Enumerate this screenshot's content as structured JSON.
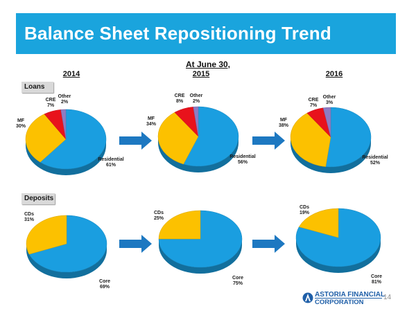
{
  "title": "Balance Sheet Repositioning Trend",
  "subtitle": "At June 30,",
  "years": [
    "2014",
    "2015",
    "2016"
  ],
  "sections": {
    "loans": "Loans",
    "deposits": "Deposits"
  },
  "colors": {
    "title_bar": "#1aa4dd",
    "blue": "#1a9ee0",
    "yellow": "#fcc100",
    "red": "#e8121c",
    "purple": "#8e7cc3",
    "arrow": "#1d78c1"
  },
  "chart_data": [
    {
      "type": "pie",
      "group": "Loans",
      "year": "2014",
      "categories": [
        "Residential",
        "MF",
        "CRE",
        "Other"
      ],
      "values": [
        61,
        30,
        7,
        2
      ],
      "labels": [
        "Residential 61%",
        "MF 30%",
        "CRE 7%",
        "Other 2%"
      ]
    },
    {
      "type": "pie",
      "group": "Loans",
      "year": "2015",
      "categories": [
        "Residential",
        "MF",
        "CRE",
        "Other"
      ],
      "values": [
        56,
        34,
        8,
        2
      ],
      "labels": [
        "Residential 56%",
        "MF 34%",
        "CRE 8%",
        "Other 2%"
      ]
    },
    {
      "type": "pie",
      "group": "Loans",
      "year": "2016",
      "categories": [
        "Residential",
        "MF",
        "CRE",
        "Other"
      ],
      "values": [
        52,
        38,
        7,
        3
      ],
      "labels": [
        "Residential 52%",
        "MF 38%",
        "CRE 7%",
        "Other 3%"
      ]
    },
    {
      "type": "pie",
      "group": "Deposits",
      "year": "2014",
      "categories": [
        "Core",
        "CDs"
      ],
      "values": [
        69,
        31
      ],
      "labels": [
        "Core 69%",
        "CDs 31%"
      ]
    },
    {
      "type": "pie",
      "group": "Deposits",
      "year": "2015",
      "categories": [
        "Core",
        "CDs"
      ],
      "values": [
        75,
        25
      ],
      "labels": [
        "Core 75%",
        "CDs 25%"
      ]
    },
    {
      "type": "pie",
      "group": "Deposits",
      "year": "2016",
      "categories": [
        "Core",
        "CDs"
      ],
      "values": [
        81,
        19
      ],
      "labels": [
        "Core 81%",
        "CDs 19%"
      ]
    }
  ],
  "logo": {
    "name": "ASTORIA FINANCIAL",
    "sub": "CORPORATION"
  },
  "page_number": "14"
}
